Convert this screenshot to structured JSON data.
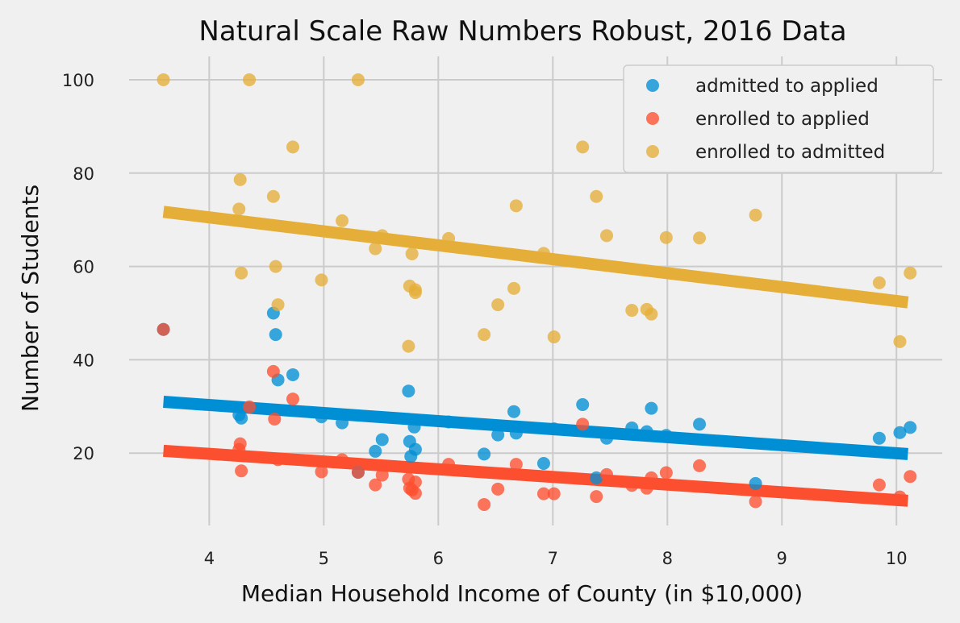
{
  "chart_data": {
    "type": "scatter",
    "title": "Natural Scale Raw Numbers Robust, 2016 Data",
    "xlabel": "Median Household Income of County (in $10,000)",
    "ylabel": "Number of Students",
    "xlim": [
      3.3,
      10.4
    ],
    "ylim": [
      4.5,
      105
    ],
    "xticks": [
      4,
      5,
      6,
      7,
      8,
      9,
      10
    ],
    "yticks": [
      20,
      40,
      60,
      80,
      100
    ],
    "grid": true,
    "legend_position": "top-right",
    "series": [
      {
        "name": "admitted to applied",
        "color": "#008fd5",
        "points": [
          [
            3.6,
            46.5
          ],
          [
            4.26,
            28.2
          ],
          [
            4.28,
            27.5
          ],
          [
            4.56,
            50.0
          ],
          [
            4.58,
            45.4
          ],
          [
            4.6,
            35.7
          ],
          [
            4.73,
            36.8
          ],
          [
            4.98,
            27.8
          ],
          [
            5.16,
            26.5
          ],
          [
            5.3,
            15.9
          ],
          [
            5.45,
            20.4
          ],
          [
            5.51,
            22.9
          ],
          [
            5.74,
            33.3
          ],
          [
            5.75,
            22.5
          ],
          [
            5.76,
            19.3
          ],
          [
            5.79,
            25.6
          ],
          [
            5.8,
            20.8
          ],
          [
            6.09,
            26.7
          ],
          [
            6.4,
            19.8
          ],
          [
            6.52,
            23.9
          ],
          [
            6.66,
            28.9
          ],
          [
            6.68,
            24.3
          ],
          [
            6.92,
            17.8
          ],
          [
            7.01,
            25.2
          ],
          [
            7.26,
            30.4
          ],
          [
            7.38,
            14.7
          ],
          [
            7.47,
            23.2
          ],
          [
            7.69,
            25.4
          ],
          [
            7.82,
            24.6
          ],
          [
            7.86,
            29.6
          ],
          [
            7.99,
            23.8
          ],
          [
            8.28,
            26.2
          ],
          [
            8.77,
            13.5
          ],
          [
            9.85,
            23.2
          ],
          [
            10.03,
            24.4
          ],
          [
            10.12,
            25.5
          ]
        ],
        "trend": {
          "x": [
            3.6,
            10.1
          ],
          "y": [
            31.0,
            19.8
          ]
        }
      },
      {
        "name": "enrolled to applied",
        "color": "#fc4f30",
        "points": [
          [
            3.6,
            46.5
          ],
          [
            4.26,
            20.8
          ],
          [
            4.27,
            22.0
          ],
          [
            4.28,
            16.2
          ],
          [
            4.35,
            29.9
          ],
          [
            4.56,
            37.5
          ],
          [
            4.57,
            27.3
          ],
          [
            4.6,
            18.6
          ],
          [
            4.73,
            31.6
          ],
          [
            4.98,
            16.0
          ],
          [
            5.16,
            18.6
          ],
          [
            5.3,
            15.9
          ],
          [
            5.45,
            13.2
          ],
          [
            5.51,
            15.3
          ],
          [
            5.74,
            14.4
          ],
          [
            5.75,
            12.5
          ],
          [
            5.77,
            12.1
          ],
          [
            5.8,
            11.4
          ],
          [
            5.8,
            13.8
          ],
          [
            6.09,
            17.6
          ],
          [
            6.4,
            9.0
          ],
          [
            6.52,
            12.3
          ],
          [
            6.68,
            17.6
          ],
          [
            6.92,
            11.3
          ],
          [
            7.01,
            11.3
          ],
          [
            7.26,
            26.2
          ],
          [
            7.38,
            10.7
          ],
          [
            7.47,
            15.4
          ],
          [
            7.69,
            13.1
          ],
          [
            7.82,
            12.5
          ],
          [
            7.86,
            14.7
          ],
          [
            7.99,
            15.8
          ],
          [
            8.28,
            17.3
          ],
          [
            8.77,
            9.6
          ],
          [
            9.85,
            13.2
          ],
          [
            10.03,
            10.6
          ],
          [
            10.12,
            15.0
          ]
        ],
        "trend": {
          "x": [
            3.6,
            10.1
          ],
          "y": [
            20.5,
            9.8
          ]
        }
      },
      {
        "name": "enrolled to admitted",
        "color": "#e5ae38",
        "points": [
          [
            3.6,
            100.0
          ],
          [
            4.35,
            100.0
          ],
          [
            5.3,
            100.0
          ],
          [
            4.73,
            85.6
          ],
          [
            7.26,
            85.6
          ],
          [
            4.26,
            72.3
          ],
          [
            4.27,
            78.6
          ],
          [
            4.28,
            58.6
          ],
          [
            4.56,
            75.0
          ],
          [
            4.58,
            60.0
          ],
          [
            4.6,
            51.8
          ],
          [
            4.98,
            57.1
          ],
          [
            5.16,
            69.8
          ],
          [
            5.45,
            63.8
          ],
          [
            5.51,
            66.6
          ],
          [
            5.74,
            42.9
          ],
          [
            5.75,
            55.8
          ],
          [
            5.77,
            62.7
          ],
          [
            5.8,
            54.4
          ],
          [
            5.8,
            55.0
          ],
          [
            6.09,
            66.0
          ],
          [
            6.4,
            45.4
          ],
          [
            6.52,
            51.8
          ],
          [
            6.66,
            55.3
          ],
          [
            6.68,
            73.0
          ],
          [
            6.92,
            62.8
          ],
          [
            7.01,
            44.9
          ],
          [
            7.38,
            75.0
          ],
          [
            7.47,
            66.6
          ],
          [
            7.69,
            50.6
          ],
          [
            7.82,
            50.8
          ],
          [
            7.86,
            49.8
          ],
          [
            7.99,
            66.2
          ],
          [
            8.28,
            66.1
          ],
          [
            8.77,
            71.0
          ],
          [
            9.85,
            56.5
          ],
          [
            10.03,
            43.9
          ],
          [
            10.12,
            58.6
          ]
        ],
        "trend": {
          "x": [
            3.6,
            10.1
          ],
          "y": [
            71.7,
            52.3
          ]
        }
      }
    ]
  }
}
